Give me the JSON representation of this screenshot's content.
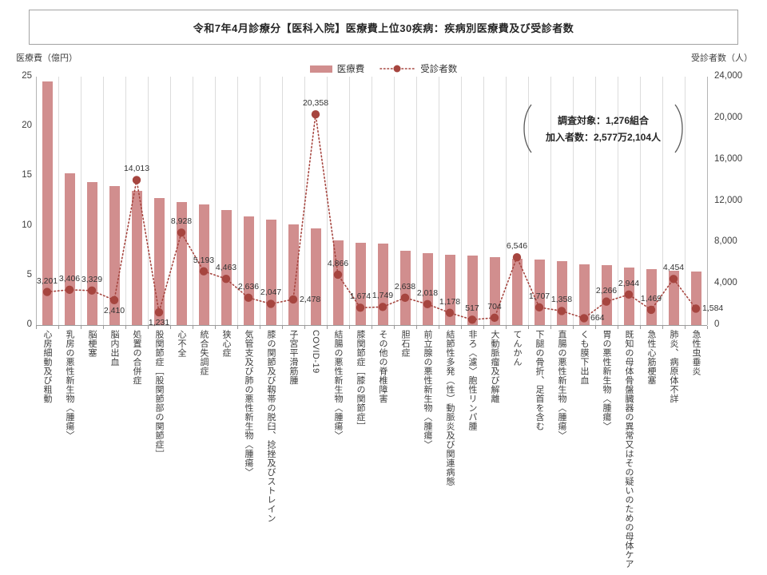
{
  "title": "令和7年4月診療分【医科入院】医療費上位30疾病：疾病別医療費及び受診者数",
  "legend": {
    "bars": "医療費",
    "line": "受診者数"
  },
  "axis_left": {
    "title": "医療費（億円）",
    "ticks": [
      "25",
      "20",
      "15",
      "10",
      "5",
      "0"
    ]
  },
  "axis_right": {
    "title": "受診者数（人）",
    "ticks": [
      "24,000",
      "20,000",
      "16,000",
      "12,000",
      "8,000",
      "4,000",
      "0"
    ]
  },
  "annotation": {
    "line1": "調査対象：1,276組合",
    "line2": "加入者数：2,577万2,104人"
  },
  "colors": {
    "bar": "#d18e8e",
    "line": "#a6453f",
    "grid": "#dcdcdc",
    "axis": "#9a9a9a"
  },
  "chart_data": {
    "type": "bar+line combo",
    "title": "令和7年4月診療分【医科入院】医療費上位30疾病：疾病別医療費及び受診者数",
    "ylabel_left": "医療費（億円）",
    "ylabel_right": "受診者数（人）",
    "ylim_left": [
      0,
      25
    ],
    "ylim_right": [
      0,
      24000
    ],
    "grid": "vertical-only",
    "legend_position": "top-center",
    "categories": [
      "心房細動及び粗動",
      "乳房の悪性新生物〈腫瘍〉",
      "脳梗塞",
      "脳内出血",
      "処置の合併症",
      "股関節症［股関節部の関節症］",
      "心不全",
      "統合失調症",
      "狭心症",
      "気管支及び肺の悪性新生物〈腫瘍〉",
      "膝の関節及び靱帯の脱臼、捻挫及びストレイン",
      "子宮平滑筋腫",
      "COVID-19",
      "結腸の悪性新生物〈腫瘍〉",
      "膝関節症［膝の関節症］",
      "その他の脊椎障害",
      "胆石症",
      "前立腺の悪性新生物〈腫瘍〉",
      "結節性多発（性）動脈炎及び関連病態",
      "非ろ〈濾〉胞性リンパ腫",
      "大動脈瘤及び解離",
      "てんかん",
      "下腿の骨折、足首を含む",
      "直腸の悪性新生物〈腫瘍〉",
      "くも膜下出血",
      "胃の悪性新生物〈腫瘍〉",
      "既知の母体骨盤臓器の異常又はその疑いのための母体ケア",
      "急性心筋梗塞",
      "肺炎、病原体不詳",
      "急性虫垂炎"
    ],
    "series": [
      {
        "name": "医療費",
        "type": "bar",
        "axis": "left",
        "unit": "億円",
        "values": [
          24.5,
          15.3,
          14.4,
          14.0,
          13.5,
          12.8,
          12.4,
          12.1,
          11.6,
          10.9,
          10.6,
          10.1,
          9.7,
          8.5,
          8.3,
          8.2,
          7.5,
          7.2,
          7.1,
          7.0,
          6.8,
          6.7,
          6.6,
          6.4,
          6.1,
          6.0,
          5.8,
          5.6,
          5.5,
          5.4
        ]
      },
      {
        "name": "受診者数",
        "type": "line",
        "axis": "right",
        "unit": "人",
        "values": [
          3201,
          3406,
          3329,
          2410,
          14013,
          1231,
          8928,
          5193,
          4463,
          2636,
          2047,
          2478,
          20358,
          4866,
          1674,
          1749,
          2638,
          2018,
          1178,
          517,
          704,
          6546,
          1707,
          1358,
          664,
          2266,
          2944,
          1469,
          4454,
          1584
        ],
        "labels": [
          "3,201",
          "3,406",
          "3,329",
          "2,410",
          "14,013",
          "1,231",
          "8,928",
          "5,193",
          "4,463",
          "2,636",
          "2,047",
          "2,478",
          "20,358",
          "4,866",
          "1,674",
          "1,749",
          "2,638",
          "2,018",
          "1,178",
          "517",
          "704",
          "6,546",
          "1,707",
          "1,358",
          "664",
          "2,266",
          "2,944",
          "1,469",
          "4,454",
          "1,584"
        ],
        "label_pos": [
          "above",
          "above",
          "above",
          "below",
          "above",
          "below",
          "above",
          "above",
          "above",
          "above",
          "above",
          "right",
          "above",
          "above",
          "above",
          "above",
          "above",
          "above",
          "above",
          "above",
          "above",
          "above",
          "above",
          "above",
          "right",
          "above",
          "above",
          "above",
          "above",
          "right"
        ]
      }
    ]
  }
}
